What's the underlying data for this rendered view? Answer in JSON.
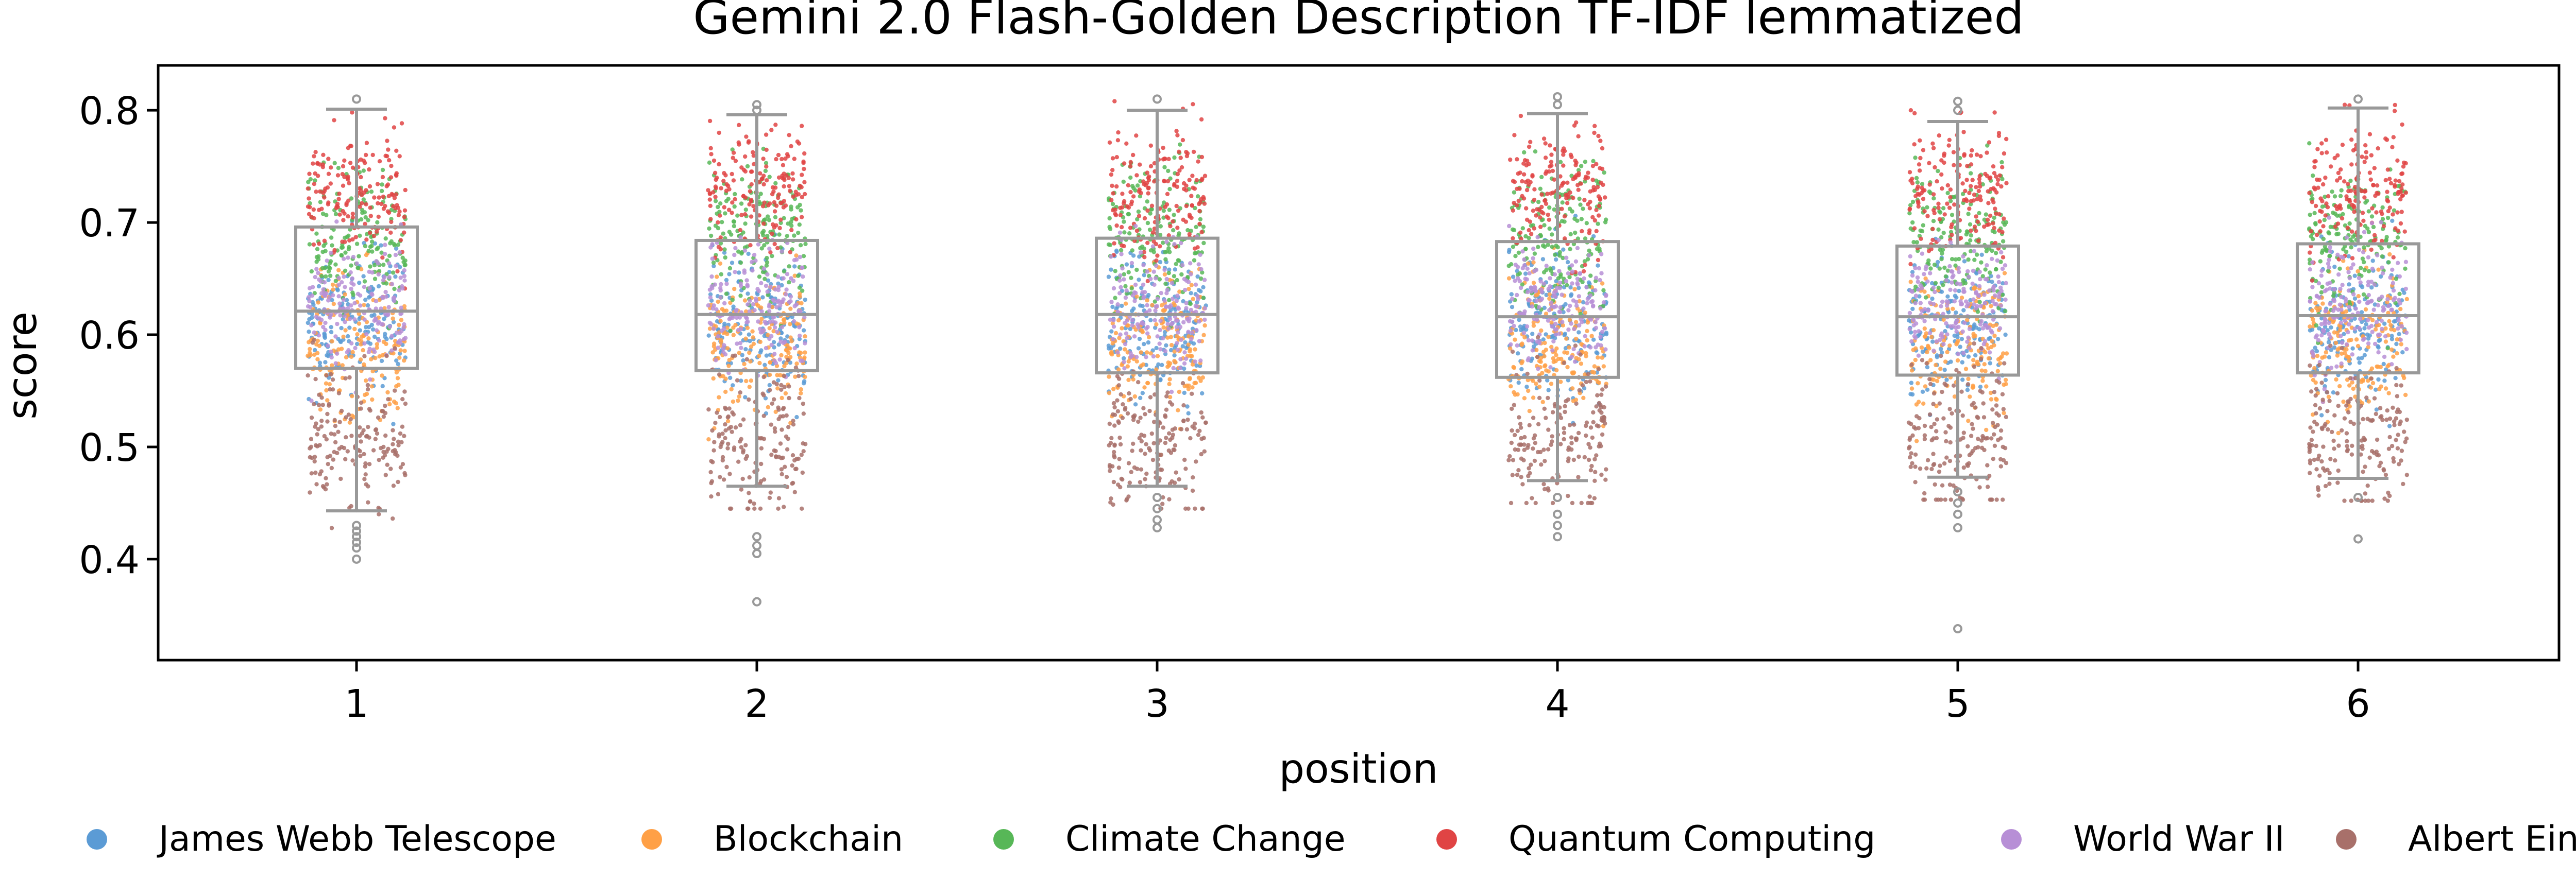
{
  "chart_data": {
    "type": "box-strip",
    "title": "Gemini 2.0 Flash-Golden Description TF-IDF lemmatized",
    "xlabel": "position",
    "ylabel": "score",
    "categories": [
      "1",
      "2",
      "3",
      "4",
      "5",
      "6"
    ],
    "ylim": [
      0.31,
      0.84
    ],
    "yticks": [
      "0.4",
      "0.5",
      "0.6",
      "0.7",
      "0.8"
    ],
    "legend_position": "bottom",
    "box_color": "#999999",
    "boxes": [
      {
        "position": "1",
        "whisker_low": 0.443,
        "q1": 0.57,
        "median": 0.621,
        "q3": 0.696,
        "whisker_high": 0.801,
        "outliers": [
          0.4,
          0.41,
          0.415,
          0.42,
          0.425,
          0.43,
          0.81
        ]
      },
      {
        "position": "2",
        "whisker_low": 0.465,
        "q1": 0.568,
        "median": 0.618,
        "q3": 0.684,
        "whisker_high": 0.796,
        "outliers": [
          0.362,
          0.405,
          0.412,
          0.42,
          0.8,
          0.805
        ]
      },
      {
        "position": "3",
        "whisker_low": 0.465,
        "q1": 0.566,
        "median": 0.618,
        "q3": 0.686,
        "whisker_high": 0.8,
        "outliers": [
          0.428,
          0.435,
          0.445,
          0.455,
          0.81
        ]
      },
      {
        "position": "4",
        "whisker_low": 0.47,
        "q1": 0.562,
        "median": 0.616,
        "q3": 0.683,
        "whisker_high": 0.797,
        "outliers": [
          0.42,
          0.43,
          0.44,
          0.455,
          0.805,
          0.812
        ]
      },
      {
        "position": "5",
        "whisker_low": 0.473,
        "q1": 0.564,
        "median": 0.616,
        "q3": 0.679,
        "whisker_high": 0.79,
        "outliers": [
          0.338,
          0.428,
          0.44,
          0.45,
          0.46,
          0.8,
          0.808
        ]
      },
      {
        "position": "6",
        "whisker_low": 0.472,
        "q1": 0.566,
        "median": 0.617,
        "q3": 0.681,
        "whisker_high": 0.802,
        "outliers": [
          0.418,
          0.455,
          0.81
        ]
      }
    ],
    "series": [
      {
        "name": "James Webb Telescope",
        "color": "#5b9bd5",
        "score_range": [
          0.52,
          0.7
        ]
      },
      {
        "name": "Blockchain",
        "color": "#ffa046",
        "score_range": [
          0.5,
          0.68
        ]
      },
      {
        "name": "Climate Change",
        "color": "#57b757",
        "score_range": [
          0.6,
          0.78
        ]
      },
      {
        "name": "Quantum Computing",
        "color": "#e04444",
        "score_range": [
          0.65,
          0.81
        ]
      },
      {
        "name": "World War II",
        "color": "#b78fd6",
        "score_range": [
          0.55,
          0.7
        ]
      },
      {
        "name": "Albert Einstein",
        "color": "#a8706a",
        "score_range": [
          0.41,
          0.6
        ]
      }
    ]
  }
}
